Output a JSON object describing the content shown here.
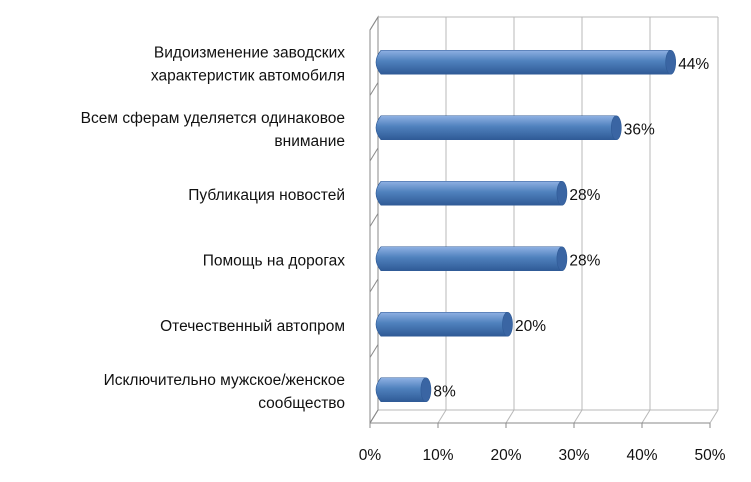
{
  "chart_data": {
    "type": "bar",
    "orientation": "horizontal",
    "three_d": true,
    "title": "",
    "xlabel": "",
    "ylabel": "",
    "categories": [
      [
        "Видоизменение заводских",
        "характеристик автомобиля"
      ],
      [
        "Всем сферам уделяется одинаковое",
        "внимание"
      ],
      [
        "Публикация новостей"
      ],
      [
        "Помощь на дорогах"
      ],
      [
        "Отечественный автопром"
      ],
      [
        "Исключительно мужское/женское",
        "сообщество"
      ]
    ],
    "values": [
      44,
      36,
      28,
      28,
      20,
      8
    ],
    "value_labels": [
      "44%",
      "36%",
      "28%",
      "28%",
      "20%",
      "8%"
    ],
    "xlim": [
      0,
      50
    ],
    "x_ticks": [
      "0%",
      "10%",
      "20%",
      "30%",
      "40%",
      "50%"
    ],
    "grid": true,
    "legend": "none",
    "colors": {
      "bar_top": "#8fb1e3",
      "bar_mid": "#4f81bd",
      "bar_bottom": "#2f5a96",
      "bar_end": "#3a65a3",
      "grid": "#b8b8b8",
      "axis": "#8a8a8a"
    }
  }
}
